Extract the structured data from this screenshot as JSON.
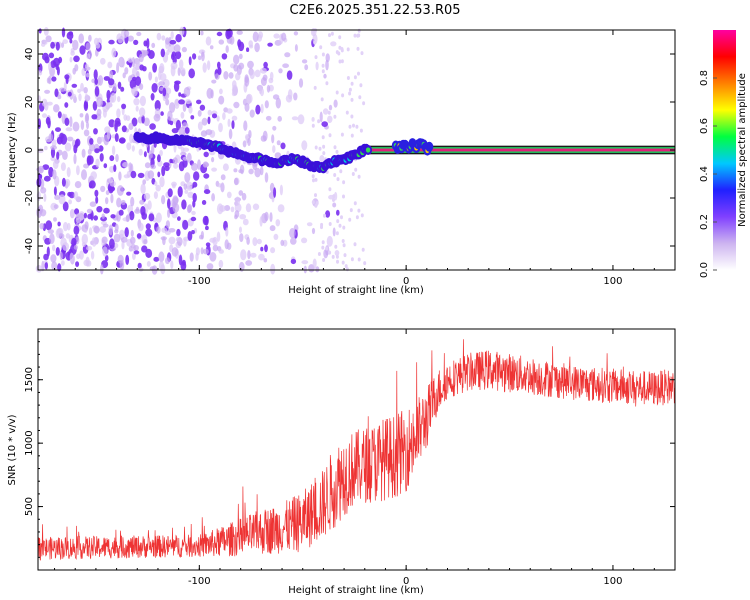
{
  "title": "C2E6.2025.351.22.53.R05",
  "chart_data": [
    {
      "type": "heatmap",
      "name": "spectrogram",
      "xlabel": "Height of straight line (km)",
      "ylabel": "Frequency (Hz)",
      "xlim": [
        -178,
        130
      ],
      "ylim": [
        -50,
        50
      ],
      "xticks": [
        -100,
        0,
        100
      ],
      "xtick_labels": [
        "-100",
        "0",
        "100"
      ],
      "yticks": [
        -40,
        -20,
        0,
        20,
        40
      ],
      "ytick_labels": [
        "-40",
        "-20",
        "0",
        "20",
        "40"
      ],
      "colorbar": {
        "label": "Normalized spectral amplitude",
        "range": [
          0,
          1
        ],
        "ticks": [
          0.0,
          0.2,
          0.4,
          0.6,
          0.8
        ],
        "tick_labels": [
          "0.0",
          "0.2",
          "0.4",
          "0.6",
          "0.8"
        ],
        "colors": [
          "#ffffff",
          "#cdb4f0",
          "#8040ff",
          "#2020ff",
          "#00c8ff",
          "#00ff40",
          "#ffff00",
          "#ff8000",
          "#ff0000",
          "#ff00a0"
        ]
      },
      "carrier_trace": {
        "x_km": [
          -130,
          -120,
          -110,
          -100,
          -95,
          -90,
          -85,
          -80,
          -75,
          -70,
          -65,
          -60,
          -55,
          -50,
          -45,
          -40,
          -35,
          -30,
          -25,
          -20,
          -15,
          -10,
          -5,
          0,
          5,
          10,
          15,
          130
        ],
        "freq_hz": [
          5,
          5,
          4,
          3,
          2,
          1,
          -1,
          -2,
          -3,
          -4,
          -5,
          -5,
          -4,
          -5,
          -7,
          -7,
          -5,
          -4,
          -2,
          0,
          0,
          0,
          1,
          1,
          2,
          1,
          0,
          0
        ],
        "color": "#e0207a",
        "start_steady_km": -20
      },
      "noise_region_km": [
        -178,
        -45
      ]
    },
    {
      "type": "line",
      "name": "snr",
      "xlabel": "Height of straight line (km)",
      "ylabel": "SNR (10 * v/v)",
      "xlim": [
        -178,
        130
      ],
      "ylim": [
        0,
        1900
      ],
      "xticks": [
        -100,
        0,
        100
      ],
      "xtick_labels": [
        "-100",
        "0",
        "100"
      ],
      "yticks": [
        500,
        1000,
        1500
      ],
      "ytick_labels": [
        "500",
        "1000",
        "1500"
      ],
      "color": "#ee3333",
      "envelope": {
        "x_km": [
          -178,
          -140,
          -100,
          -90,
          -80,
          -70,
          -60,
          -50,
          -40,
          -35,
          -30,
          -25,
          -20,
          -15,
          -10,
          -5,
          0,
          5,
          10,
          15,
          20,
          30,
          40,
          60,
          80,
          100,
          120,
          130
        ],
        "mean": [
          170,
          180,
          190,
          220,
          260,
          300,
          330,
          380,
          520,
          650,
          750,
          800,
          830,
          850,
          880,
          900,
          950,
          1050,
          1200,
          1400,
          1500,
          1560,
          1580,
          1530,
          1480,
          1450,
          1430,
          1450
        ],
        "spread": [
          90,
          90,
          90,
          120,
          150,
          180,
          200,
          240,
          280,
          330,
          330,
          300,
          300,
          320,
          330,
          330,
          330,
          300,
          250,
          180,
          150,
          150,
          160,
          150,
          140,
          140,
          140,
          140
        ]
      }
    }
  ]
}
